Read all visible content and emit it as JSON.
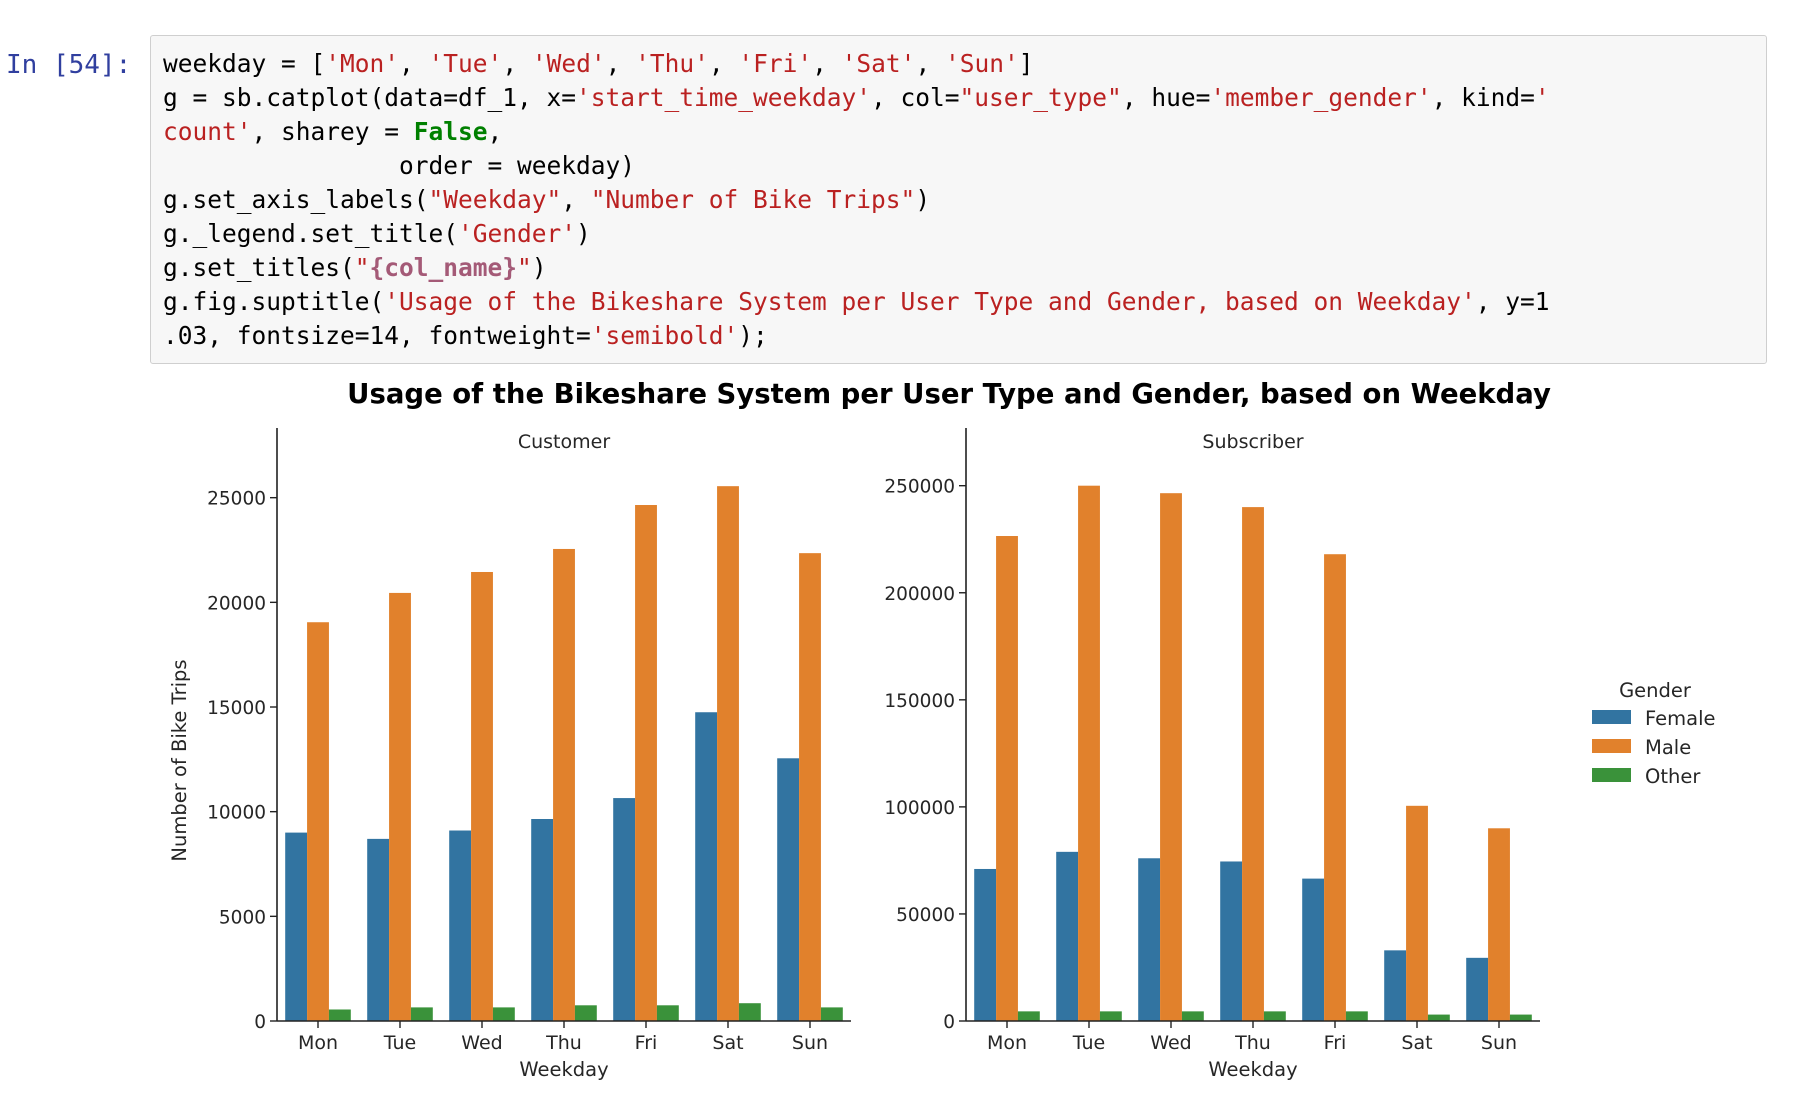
{
  "cell": {
    "prompt": "In [54]:",
    "code_lines": [
      [
        {
          "t": "n",
          "v": "weekday = ["
        },
        {
          "t": "s",
          "v": "'Mon'"
        },
        {
          "t": "n",
          "v": ", "
        },
        {
          "t": "s",
          "v": "'Tue'"
        },
        {
          "t": "n",
          "v": ", "
        },
        {
          "t": "s",
          "v": "'Wed'"
        },
        {
          "t": "n",
          "v": ", "
        },
        {
          "t": "s",
          "v": "'Thu'"
        },
        {
          "t": "n",
          "v": ", "
        },
        {
          "t": "s",
          "v": "'Fri'"
        },
        {
          "t": "n",
          "v": ", "
        },
        {
          "t": "s",
          "v": "'Sat'"
        },
        {
          "t": "n",
          "v": ", "
        },
        {
          "t": "s",
          "v": "'Sun'"
        },
        {
          "t": "n",
          "v": "]"
        }
      ],
      [
        {
          "t": "n",
          "v": "g = sb.catplot(data=df_1, x="
        },
        {
          "t": "s",
          "v": "'start_time_weekday'"
        },
        {
          "t": "n",
          "v": ", col="
        },
        {
          "t": "s",
          "v": "\"user_type\""
        },
        {
          "t": "n",
          "v": ", hue="
        },
        {
          "t": "s",
          "v": "'member_gender'"
        },
        {
          "t": "n",
          "v": ", kind="
        },
        {
          "t": "s",
          "v": "'"
        }
      ],
      [
        {
          "t": "s",
          "v": "count'"
        },
        {
          "t": "n",
          "v": ", sharey = "
        },
        {
          "t": "k",
          "v": "False"
        },
        {
          "t": "n",
          "v": ","
        }
      ],
      [
        {
          "t": "n",
          "v": "                order = weekday)"
        }
      ],
      [
        {
          "t": "n",
          "v": "g.set_axis_labels("
        },
        {
          "t": "s",
          "v": "\"Weekday\""
        },
        {
          "t": "n",
          "v": ", "
        },
        {
          "t": "s",
          "v": "\"Number of Bike Trips\""
        },
        {
          "t": "n",
          "v": ")"
        }
      ],
      [
        {
          "t": "n",
          "v": "g._legend.set_title("
        },
        {
          "t": "s",
          "v": "'Gender'"
        },
        {
          "t": "n",
          "v": ")"
        }
      ],
      [
        {
          "t": "n",
          "v": "g.set_titles("
        },
        {
          "t": "s",
          "v": "\""
        },
        {
          "t": "ip",
          "v": "{col_name}"
        },
        {
          "t": "s",
          "v": "\""
        },
        {
          "t": "n",
          "v": ")"
        }
      ],
      [
        {
          "t": "n",
          "v": "g.fig.suptitle("
        },
        {
          "t": "s",
          "v": "'Usage of the Bikeshare System per User Type and Gender, based on Weekday'"
        },
        {
          "t": "n",
          "v": ", y=1"
        }
      ],
      [
        {
          "t": "n",
          "v": ".03, fontsize=14, fontweight="
        },
        {
          "t": "s",
          "v": "'semibold'"
        },
        {
          "t": "n",
          "v": ");"
        }
      ]
    ]
  },
  "colors": {
    "female": "#3274a1",
    "male": "#e1812c",
    "other": "#3a923a",
    "axis": "#222222",
    "text": "#262626"
  },
  "chart_data": {
    "type": "bar",
    "title": "Usage of the Bikeshare System per User Type and Gender, based on Weekday",
    "legend": {
      "title": "Gender",
      "entries": [
        "Female",
        "Male",
        "Other"
      ],
      "placement": "right"
    },
    "xlabel": "Weekday",
    "ylabel": "Number of Bike Trips",
    "panels": [
      {
        "title": "Customer",
        "categories": [
          "Mon",
          "Tue",
          "Wed",
          "Thu",
          "Fri",
          "Sat",
          "Sun"
        ],
        "ylim": [
          0,
          26800
        ],
        "yticks": [
          0,
          5000,
          10000,
          15000,
          20000,
          25000
        ],
        "series": [
          {
            "name": "Female",
            "values": [
              9000,
              8700,
              9100,
              9650,
              10650,
              14750,
              12550
            ]
          },
          {
            "name": "Male",
            "values": [
              19050,
              20450,
              21450,
              22550,
              24650,
              25550,
              22350
            ]
          },
          {
            "name": "Other",
            "values": [
              550,
              650,
              650,
              750,
              750,
              850,
              650
            ]
          }
        ]
      },
      {
        "title": "Subscriber",
        "categories": [
          "Mon",
          "Tue",
          "Wed",
          "Thu",
          "Fri",
          "Sat",
          "Sun"
        ],
        "ylim": [
          0,
          262000
        ],
        "yticks": [
          0,
          50000,
          100000,
          150000,
          200000,
          250000
        ],
        "series": [
          {
            "name": "Female",
            "values": [
              71000,
              79000,
              76000,
              74500,
              66500,
              33000,
              29500
            ]
          },
          {
            "name": "Male",
            "values": [
              226500,
              250000,
              246500,
              240000,
              218000,
              100500,
              90000
            ]
          },
          {
            "name": "Other",
            "values": [
              4500,
              4500,
              4500,
              4500,
              4500,
              3000,
              3000
            ]
          }
        ]
      }
    ]
  }
}
